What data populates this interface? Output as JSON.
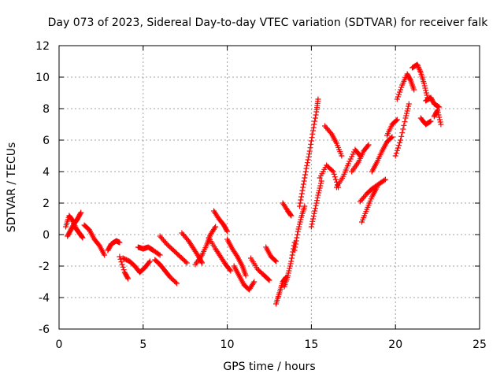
{
  "chart_data": {
    "type": "scatter",
    "title": "Day 073 of 2023, Sidereal Day-to-day VTEC variation (SDTVAR) for receiver falk",
    "xlabel": "GPS time / hours",
    "ylabel": "SDTVAR / TECUs",
    "xlim": [
      0,
      25
    ],
    "ylim": [
      -6,
      12
    ],
    "xticks": [
      0,
      5,
      10,
      15,
      20,
      25
    ],
    "yticks": [
      -6,
      -4,
      -2,
      0,
      2,
      4,
      6,
      8,
      10,
      12
    ],
    "grid": true,
    "marker": "+",
    "color": "#ff0000",
    "series": [
      {
        "name": "SDTVAR",
        "tracks": [
          [
            [
              0.4,
              0.5
            ],
            [
              0.6,
              1.2
            ],
            [
              0.8,
              0.9
            ],
            [
              1.0,
              0.4
            ],
            [
              1.2,
              0.1
            ],
            [
              1.4,
              -0.2
            ]
          ],
          [
            [
              0.5,
              -0.1
            ],
            [
              0.7,
              0.3
            ],
            [
              0.9,
              0.7
            ],
            [
              1.1,
              1.0
            ],
            [
              1.3,
              1.4
            ]
          ],
          [
            [
              1.5,
              0.6
            ],
            [
              1.8,
              0.3
            ],
            [
              2.1,
              -0.3
            ],
            [
              2.4,
              -0.7
            ],
            [
              2.7,
              -1.3
            ]
          ],
          [
            [
              2.9,
              -1.0
            ],
            [
              3.1,
              -0.6
            ],
            [
              3.4,
              -0.4
            ],
            [
              3.6,
              -0.5
            ]
          ],
          [
            [
              3.6,
              -1.4
            ],
            [
              3.9,
              -2.4
            ],
            [
              4.1,
              -2.8
            ]
          ],
          [
            [
              3.8,
              -1.5
            ],
            [
              4.2,
              -1.7
            ],
            [
              4.5,
              -2.0
            ],
            [
              4.8,
              -2.4
            ],
            [
              5.1,
              -2.1
            ],
            [
              5.4,
              -1.7
            ]
          ],
          [
            [
              4.7,
              -0.8
            ],
            [
              5.0,
              -0.9
            ],
            [
              5.3,
              -0.8
            ],
            [
              5.6,
              -1.0
            ],
            [
              6.0,
              -1.3
            ]
          ],
          [
            [
              5.7,
              -1.6
            ],
            [
              6.0,
              -1.9
            ],
            [
              6.3,
              -2.3
            ],
            [
              6.6,
              -2.7
            ],
            [
              7.0,
              -3.1
            ]
          ],
          [
            [
              6.0,
              -0.1
            ],
            [
              6.4,
              -0.6
            ],
            [
              6.8,
              -1.0
            ],
            [
              7.2,
              -1.4
            ],
            [
              7.6,
              -1.8
            ]
          ],
          [
            [
              7.3,
              0.1
            ],
            [
              7.7,
              -0.4
            ],
            [
              8.0,
              -0.9
            ],
            [
              8.3,
              -1.4
            ],
            [
              8.5,
              -1.8
            ]
          ],
          [
            [
              8.1,
              -1.9
            ],
            [
              8.5,
              -1.3
            ],
            [
              8.8,
              -0.6
            ],
            [
              9.0,
              0.0
            ],
            [
              9.3,
              0.5
            ]
          ],
          [
            [
              9.2,
              1.5
            ],
            [
              9.5,
              1.0
            ],
            [
              9.8,
              0.6
            ],
            [
              10.0,
              0.2
            ]
          ],
          [
            [
              8.9,
              -0.2
            ],
            [
              9.3,
              -0.9
            ],
            [
              9.6,
              -1.4
            ],
            [
              9.9,
              -1.9
            ],
            [
              10.2,
              -2.3
            ]
          ],
          [
            [
              10.0,
              -0.3
            ],
            [
              10.3,
              -0.9
            ],
            [
              10.6,
              -1.4
            ],
            [
              10.9,
              -2.0
            ],
            [
              11.1,
              -2.6
            ]
          ],
          [
            [
              10.4,
              -2.0
            ],
            [
              10.7,
              -2.6
            ],
            [
              11.0,
              -3.2
            ],
            [
              11.3,
              -3.5
            ],
            [
              11.6,
              -3.0
            ]
          ],
          [
            [
              11.4,
              -1.5
            ],
            [
              11.8,
              -2.2
            ],
            [
              12.2,
              -2.6
            ],
            [
              12.5,
              -2.9
            ]
          ],
          [
            [
              12.3,
              -0.8
            ],
            [
              12.6,
              -1.4
            ],
            [
              12.9,
              -1.7
            ]
          ],
          [
            [
              12.9,
              -4.4
            ],
            [
              13.1,
              -3.7
            ],
            [
              13.3,
              -3.0
            ],
            [
              13.5,
              -2.7
            ]
          ],
          [
            [
              13.4,
              -3.3
            ],
            [
              13.6,
              -2.6
            ],
            [
              13.8,
              -1.7
            ],
            [
              14.0,
              -0.5
            ]
          ],
          [
            [
              13.3,
              2.0
            ],
            [
              13.6,
              1.5
            ],
            [
              13.8,
              1.2
            ]
          ],
          [
            [
              14.0,
              -1.0
            ],
            [
              14.2,
              0.2
            ],
            [
              14.4,
              1.1
            ],
            [
              14.6,
              1.8
            ]
          ],
          [
            [
              14.3,
              1.8
            ],
            [
              14.5,
              3.0
            ],
            [
              14.7,
              4.2
            ],
            [
              14.9,
              5.3
            ],
            [
              15.1,
              6.6
            ],
            [
              15.3,
              7.8
            ],
            [
              15.4,
              8.6
            ]
          ],
          [
            [
              15.0,
              0.5
            ],
            [
              15.2,
              1.5
            ],
            [
              15.4,
              2.5
            ],
            [
              15.6,
              3.4
            ]
          ],
          [
            [
              15.5,
              3.6
            ],
            [
              15.9,
              4.4
            ],
            [
              16.3,
              4.0
            ],
            [
              16.6,
              3.0
            ]
          ],
          [
            [
              15.8,
              6.9
            ],
            [
              16.2,
              6.4
            ],
            [
              16.5,
              5.8
            ],
            [
              16.8,
              5.0
            ]
          ],
          [
            [
              16.5,
              3.0
            ],
            [
              16.9,
              3.7
            ],
            [
              17.2,
              4.5
            ],
            [
              17.6,
              5.4
            ],
            [
              17.9,
              5.0
            ]
          ],
          [
            [
              17.9,
              2.1
            ],
            [
              18.3,
              2.6
            ],
            [
              18.6,
              2.9
            ],
            [
              19.0,
              3.2
            ],
            [
              19.4,
              3.5
            ]
          ],
          [
            [
              17.4,
              4.0
            ],
            [
              17.8,
              4.6
            ],
            [
              18.1,
              5.3
            ],
            [
              18.4,
              5.7
            ]
          ],
          [
            [
              18.6,
              4.0
            ],
            [
              18.9,
              4.6
            ],
            [
              19.2,
              5.3
            ],
            [
              19.5,
              5.9
            ],
            [
              19.8,
              6.2
            ]
          ],
          [
            [
              18.0,
              0.8
            ],
            [
              18.3,
              1.6
            ],
            [
              18.6,
              2.4
            ],
            [
              18.9,
              3.0
            ]
          ],
          [
            [
              19.5,
              6.3
            ],
            [
              19.8,
              7.0
            ],
            [
              20.1,
              7.3
            ]
          ],
          [
            [
              20.0,
              5.0
            ],
            [
              20.3,
              6.0
            ],
            [
              20.6,
              7.4
            ],
            [
              20.8,
              8.3
            ]
          ],
          [
            [
              20.1,
              8.6
            ],
            [
              20.4,
              9.5
            ],
            [
              20.7,
              10.2
            ],
            [
              20.9,
              9.8
            ],
            [
              21.1,
              9.2
            ]
          ],
          [
            [
              21.0,
              10.6
            ],
            [
              21.3,
              10.8
            ],
            [
              21.5,
              10.3
            ],
            [
              21.7,
              9.6
            ],
            [
              21.9,
              8.7
            ]
          ],
          [
            [
              21.5,
              7.4
            ],
            [
              21.8,
              7.0
            ],
            [
              22.1,
              7.2
            ]
          ],
          [
            [
              21.8,
              8.5
            ],
            [
              22.1,
              8.7
            ],
            [
              22.3,
              8.3
            ],
            [
              22.6,
              8.1
            ]
          ],
          [
            [
              22.3,
              7.5
            ],
            [
              22.5,
              7.9
            ],
            [
              22.7,
              7.0
            ]
          ]
        ]
      }
    ]
  }
}
